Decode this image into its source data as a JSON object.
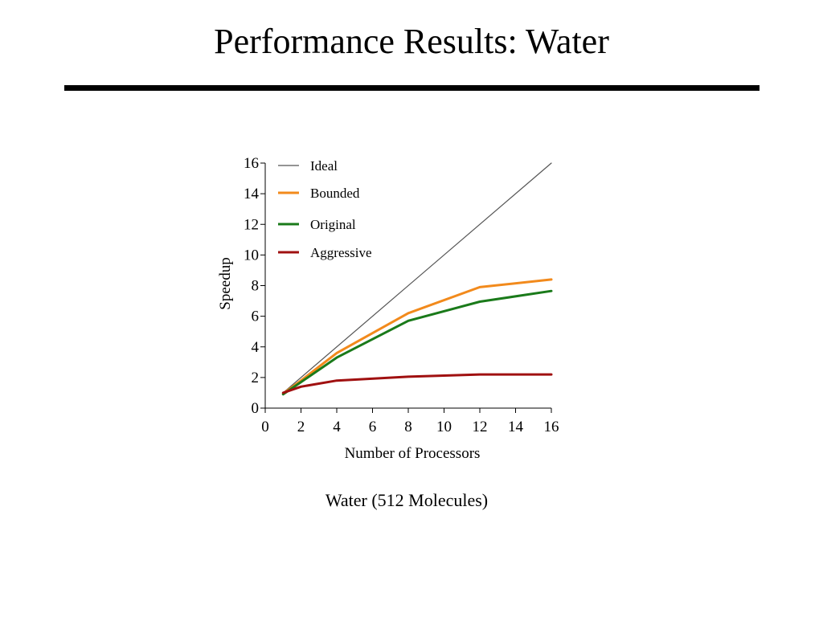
{
  "slide": {
    "title": "Performance Results: Water",
    "caption": "Water (512 Molecules)"
  },
  "chart_data": {
    "type": "line",
    "title": "",
    "xlabel": "Number of Processors",
    "ylabel": "Speedup",
    "xlim": [
      0,
      16
    ],
    "ylim": [
      0,
      16
    ],
    "xticks": [
      0,
      2,
      4,
      6,
      8,
      10,
      12,
      14,
      16
    ],
    "yticks": [
      0,
      2,
      4,
      6,
      8,
      10,
      12,
      14,
      16
    ],
    "grid": false,
    "legend_position": "top-left",
    "series": [
      {
        "name": "Ideal",
        "color": "#555555",
        "x": [
          1,
          16
        ],
        "y": [
          1,
          16
        ]
      },
      {
        "name": "Bounded",
        "color": "#f28a1c",
        "x": [
          1,
          2,
          4,
          8,
          12,
          16
        ],
        "y": [
          0.95,
          1.8,
          3.6,
          6.2,
          7.9,
          8.4
        ]
      },
      {
        "name": "Original",
        "color": "#1a7a1a",
        "x": [
          1,
          2,
          4,
          8,
          12,
          16
        ],
        "y": [
          0.9,
          1.7,
          3.3,
          5.7,
          6.95,
          7.65
        ]
      },
      {
        "name": "Aggressive",
        "color": "#a01010",
        "x": [
          1,
          2,
          4,
          8,
          12,
          16
        ],
        "y": [
          1.0,
          1.4,
          1.8,
          2.05,
          2.2,
          2.2
        ]
      }
    ]
  }
}
